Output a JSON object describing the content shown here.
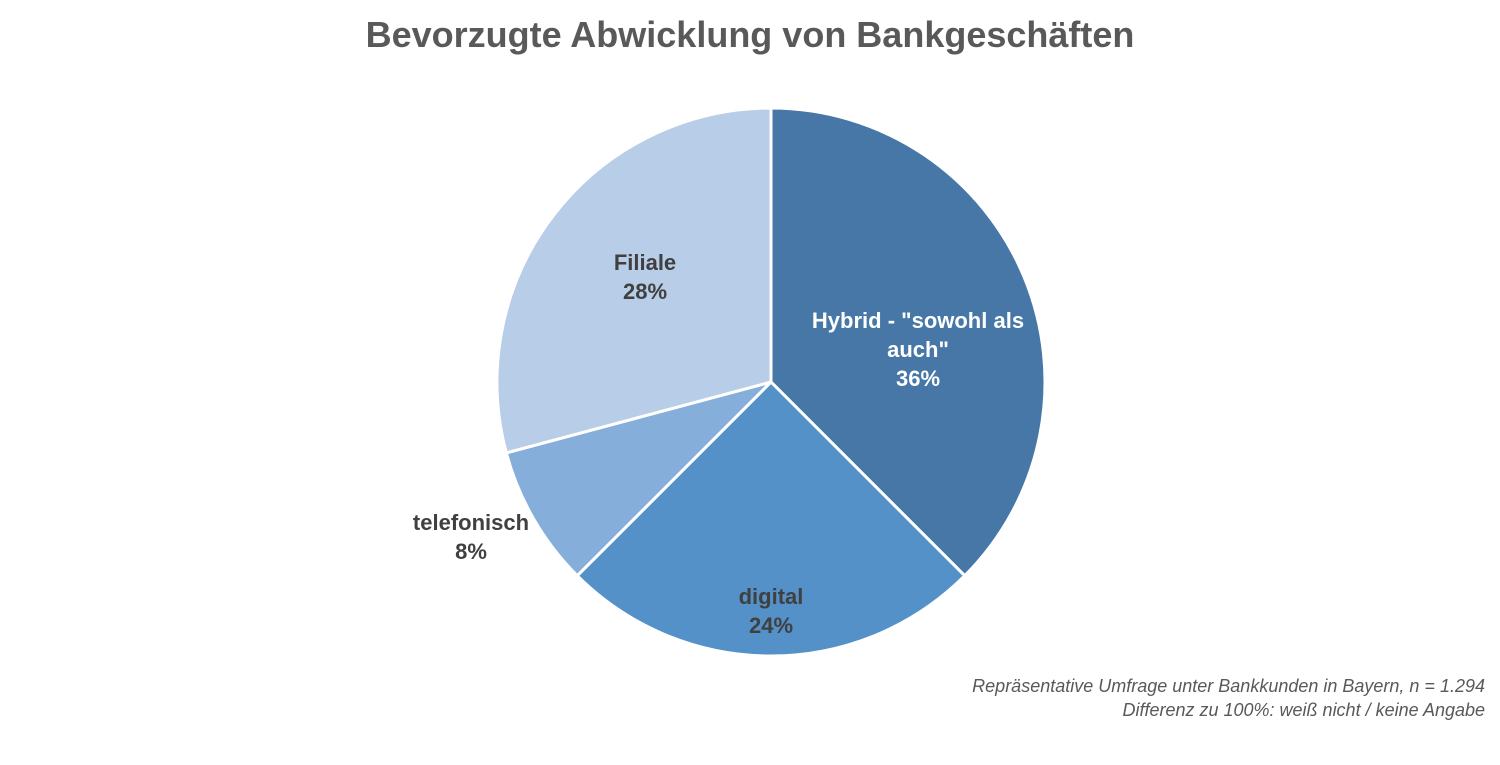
{
  "chart_data": {
    "type": "pie",
    "title": "Bevorzugte Abwicklung von Bankgeschäften",
    "slices": [
      {
        "label_lines": [
          "Hybrid - \"sowohl als",
          "auch\""
        ],
        "value": 36,
        "value_label": "36%",
        "color": "#4677A7",
        "label_color": "#FFFFFF"
      },
      {
        "label_lines": [
          "digital"
        ],
        "value": 24,
        "value_label": "24%",
        "color": "#5491C8",
        "label_color": "#404040"
      },
      {
        "label_lines": [
          "telefonisch"
        ],
        "value": 8,
        "value_label": "8%",
        "color": "#85AEDB",
        "label_color": "#404040"
      },
      {
        "label_lines": [
          "Filiale"
        ],
        "value": 28,
        "value_label": "28%",
        "color": "#B8CDE7",
        "label_color": "#404040"
      }
    ],
    "start_angle_deg": 0,
    "direction": "clockwise",
    "legend": "none"
  },
  "footnote": {
    "line1": "Repräsentative Umfrage unter Bankkunden in Bayern, n = 1.294",
    "line2": "Differenz zu 100%: weiß nicht / keine Angabe"
  }
}
